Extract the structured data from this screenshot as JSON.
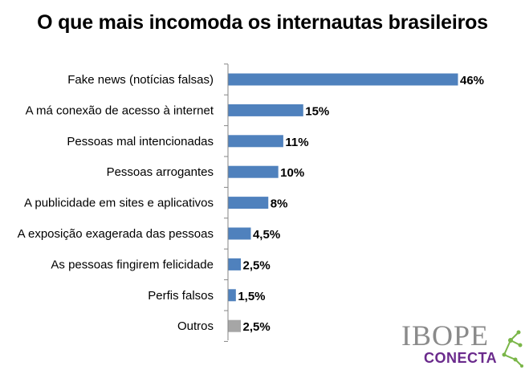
{
  "chart_data": {
    "type": "bar",
    "orientation": "horizontal",
    "title": "O que mais incomoda os internautas brasileiros",
    "categories": [
      "Fake news (notícias falsas)",
      "A má conexão de acesso à internet",
      "Pessoas mal intencionadas",
      "Pessoas arrogantes",
      "A publicidade em sites e aplicativos",
      "A exposição exagerada das pessoas",
      "As pessoas fingirem felicidade",
      "Perfis falsos",
      "Outros"
    ],
    "values": [
      46,
      15,
      11,
      10,
      8,
      4.5,
      2.5,
      1.5,
      2.5
    ],
    "value_labels": [
      "46%",
      "15%",
      "11%",
      "10%",
      "8%",
      "4,5%",
      "2,5%",
      "1,5%",
      "2,5%"
    ],
    "colors": [
      "#4f81bd",
      "#4f81bd",
      "#4f81bd",
      "#4f81bd",
      "#4f81bd",
      "#4f81bd",
      "#4f81bd",
      "#4f81bd",
      "#a6a6a6"
    ],
    "xlim": [
      0,
      46
    ],
    "grid": false,
    "legend": "none"
  },
  "logo": {
    "brand": "IBOPE",
    "sub": "CONECTA",
    "brand_color": "#8a8a8a",
    "sub_color": "#6a2a8c",
    "accent_color": "#7ab648"
  }
}
